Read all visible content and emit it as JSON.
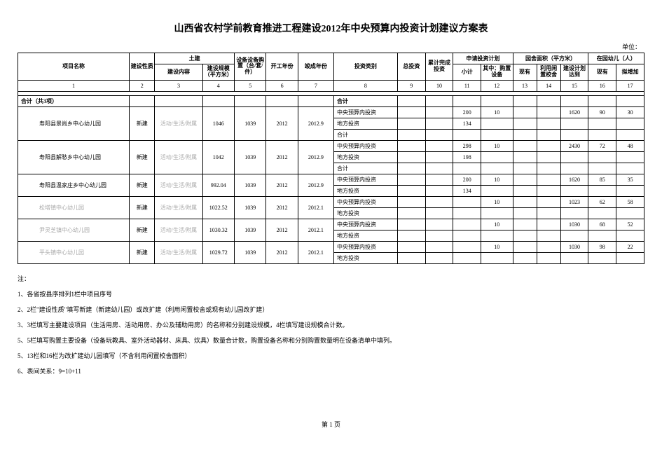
{
  "title": "山西省农村学前教育推进工程建设2012年中央预算内投资计划建议方案表",
  "unit_label": "单位：",
  "headers": {
    "col1": "项目名称",
    "col2": "建设性质",
    "col_tujian": "土建",
    "col3": "建设内容",
    "col4": "建设规模（平方米）",
    "col5": "设备设备购置（台/套/件）",
    "col6": "开工年份",
    "col7": "竣成年份",
    "col8": "投资类别",
    "col9": "总投资",
    "col10": "累计完成投资",
    "col_apply": "申请投资计划",
    "col11": "小计",
    "col12": "其中：购置设备",
    "col_area": "园舍面积（平方米）",
    "col13": "现有",
    "col14": "利用闲置校舍",
    "col15": "建设计划达到",
    "col_kids": "在园幼儿（人）",
    "col16": "现有",
    "col17": "拟增加"
  },
  "colnums": [
    "1",
    "2",
    "3",
    "4",
    "5",
    "6",
    "7",
    "8",
    "9",
    "10",
    "11",
    "12",
    "13",
    "14",
    "15",
    "16",
    "17"
  ],
  "total_label": "合计（共3项）",
  "total_col8": "合计",
  "rows": [
    {
      "name": "寿阳县景尚乡中心幼儿园",
      "c2": "新建",
      "c3": "活动/生活/附属",
      "c4": "1046",
      "c5": "1039",
      "c6": "2012",
      "c7": "2012.9",
      "lines": [
        {
          "c8": "中央预算内投资",
          "c11": "200",
          "c12": "10",
          "c15": "1620",
          "c16": "90",
          "c17": "30"
        },
        {
          "c8": "地方投资",
          "c11": "134"
        },
        {
          "c8": "合计"
        }
      ]
    },
    {
      "name": "寿阳县解愁乡中心幼儿园",
      "c2": "新建",
      "c3": "活动/生活/附属",
      "c4": "1042",
      "c5": "1039",
      "c6": "2012",
      "c7": "2012.9",
      "lines": [
        {
          "c8": "中央预算内投资",
          "c11": "298",
          "c12": "10",
          "c15": "2430",
          "c16": "72",
          "c17": "48"
        },
        {
          "c8": "地方投资",
          "c11": "198"
        },
        {
          "c8": "合计"
        }
      ]
    },
    {
      "name": "寿阳县温家庄乡中心幼儿园",
      "c2": "新建",
      "c3": "活动/生活/附属",
      "c4": "992.04",
      "c5": "1039",
      "c6": "2012",
      "c7": "2012.9",
      "lines": [
        {
          "c8": "中央预算内投资",
          "c11": "200",
          "c12": "10",
          "c15": "1620",
          "c16": "85",
          "c17": "35"
        },
        {
          "c8": "地方投资",
          "c11": "134"
        }
      ]
    },
    {
      "name": "松塔镇中心幼儿园",
      "grey": true,
      "c2": "新建",
      "c3": "活动/生活/附属",
      "c4": "1022.52",
      "c5": "1039",
      "c6": "2012",
      "c7": "2012.1",
      "lines": [
        {
          "c8": "中央预算内投资",
          "c12": "10",
          "c15": "1023",
          "c16": "62",
          "c17": "58"
        },
        {
          "c8": "地方投资"
        }
      ]
    },
    {
      "name": "尹灵芝镇中心幼儿园",
      "grey": true,
      "c2": "新建",
      "c3": "活动/生活/附属",
      "c4": "1030.32",
      "c5": "1039",
      "c6": "2012",
      "c7": "2012.1",
      "lines": [
        {
          "c8": "中央预算内投资",
          "c12": "10",
          "c15": "1030",
          "c16": "68",
          "c17": "52"
        },
        {
          "c8": "地方投资"
        }
      ]
    },
    {
      "name": "平头镇中心幼儿园",
      "grey": true,
      "c2": "新建",
      "c3": "活动/生活/附属",
      "c4": "1029.72",
      "c5": "1039",
      "c6": "2012",
      "c7": "2012.1",
      "lines": [
        {
          "c8": "中央预算内投资",
          "c12": "10",
          "c15": "1030",
          "c16": "98",
          "c17": "22"
        },
        {
          "c8": "地方投资"
        }
      ]
    }
  ],
  "notes_header": "注：",
  "notes": [
    "1、各省按县序排列1栏中项目序号",
    "2、2栏\"建设性质\"填写新建（新建幼儿园）或改扩建（利用闲置校舍或现有幼儿园改扩建）",
    "3、3栏填写主要建设项目（生活用房、活动用房、办公及辅助用房）的名称和分别建设规模，4栏填写建设规模合计数。",
    "5、5栏填写购置主要设备（设备玩教具、室外活动器材、床具、炊具）数量合计数，购置设备名称和分别购置数量明在设备清单中填列。",
    "5、13栏和16栏为改扩建幼儿园填写（不含利用闲置校舍面积）",
    "6、表间关系：9=10+11"
  ],
  "page_footer": "第 1 页"
}
